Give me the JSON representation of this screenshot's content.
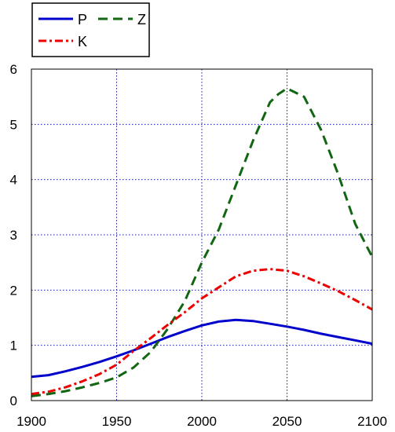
{
  "chart_data": {
    "type": "line",
    "title": "",
    "xlabel": "",
    "ylabel": "",
    "xlim": [
      1900,
      2100
    ],
    "ylim": [
      0,
      6
    ],
    "xticks": [
      1900,
      1950,
      2000,
      2050,
      2100
    ],
    "yticks": [
      0,
      1,
      2,
      3,
      4,
      5,
      6
    ],
    "grid": true,
    "legend_position": "top-left",
    "series": [
      {
        "name": "P",
        "color": "#0000cc",
        "style": "solid",
        "x": [
          1900,
          1910,
          1920,
          1930,
          1940,
          1950,
          1960,
          1970,
          1980,
          1990,
          2000,
          2010,
          2020,
          2030,
          2040,
          2050,
          2060,
          2070,
          2080,
          2090,
          2100
        ],
        "y": [
          0.43,
          0.46,
          0.53,
          0.61,
          0.7,
          0.8,
          0.91,
          1.03,
          1.15,
          1.26,
          1.36,
          1.43,
          1.46,
          1.44,
          1.39,
          1.34,
          1.28,
          1.21,
          1.15,
          1.09,
          1.03
        ]
      },
      {
        "name": "Z",
        "color": "#116611",
        "style": "dashed",
        "x": [
          1900,
          1910,
          1920,
          1930,
          1940,
          1950,
          1960,
          1970,
          1980,
          1990,
          2000,
          2010,
          2020,
          2030,
          2040,
          2045,
          2050,
          2060,
          2070,
          2080,
          2090,
          2100
        ],
        "y": [
          0.08,
          0.12,
          0.17,
          0.24,
          0.32,
          0.42,
          0.6,
          0.88,
          1.3,
          1.8,
          2.5,
          3.1,
          3.9,
          4.7,
          5.4,
          5.55,
          5.65,
          5.5,
          4.9,
          4.1,
          3.2,
          2.6
        ]
      },
      {
        "name": "K",
        "color": "#ee0000",
        "style": "dashdot",
        "x": [
          1900,
          1910,
          1920,
          1930,
          1940,
          1950,
          1960,
          1970,
          1980,
          1990,
          2000,
          2010,
          2020,
          2030,
          2040,
          2050,
          2060,
          2070,
          2080,
          2090,
          2100
        ],
        "y": [
          0.12,
          0.16,
          0.24,
          0.35,
          0.48,
          0.65,
          0.9,
          1.13,
          1.37,
          1.6,
          1.85,
          2.05,
          2.25,
          2.35,
          2.38,
          2.35,
          2.25,
          2.12,
          1.98,
          1.82,
          1.65
        ]
      }
    ]
  }
}
